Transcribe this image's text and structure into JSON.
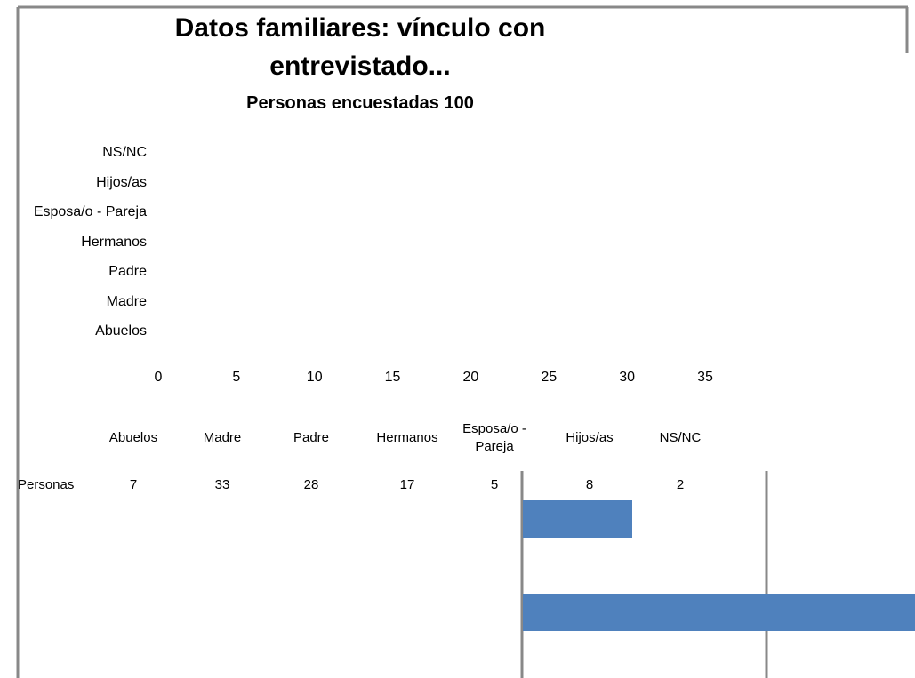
{
  "chart_data": {
    "type": "bar",
    "title": "Datos familiares: vínculo con entrevistado...",
    "subtitle": "Personas encuestadas 100",
    "categories": [
      "Abuelos",
      "Madre",
      "Padre",
      "Hermanos",
      "Esposa/o - Pareja",
      "Hijos/as",
      "NS/NC"
    ],
    "series": [
      {
        "name": "Personas",
        "color": "#4f81bd",
        "values": [
          7,
          33,
          28,
          17,
          5,
          8,
          2
        ]
      }
    ],
    "xlim": [
      0,
      35
    ],
    "xticks": [
      0,
      5,
      10,
      15,
      20,
      25,
      30,
      35
    ]
  }
}
